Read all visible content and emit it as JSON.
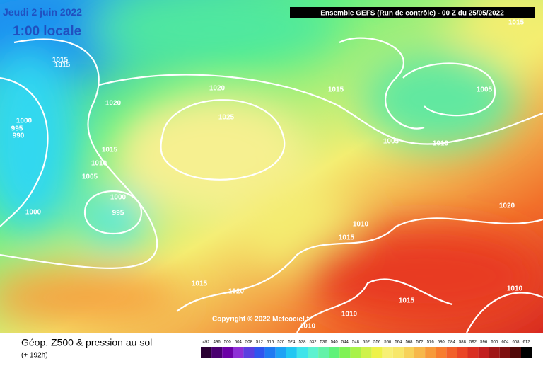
{
  "header": {
    "date": "Jeudi 2 juin 2022",
    "time": "1:00 locale",
    "run": "Ensemble GEFS  (Run de contrôle)  -  00 Z du 25/05/2022"
  },
  "map": {
    "copyright": "Copyright © 2022 Meteociel.fr",
    "isobar_labels": [
      1015,
      1015,
      1020,
      1020,
      1025,
      1015,
      1005,
      1005,
      1010,
      1000,
      995,
      990,
      1015,
      1010,
      1005,
      1000,
      995,
      1000,
      1020,
      1010,
      1015,
      1015,
      1020,
      1015,
      1010,
      1010,
      1010,
      1015
    ]
  },
  "footer": {
    "title": "Géop. Z500 & pression au sol",
    "lead": "(+ 192h)"
  },
  "legend": {
    "values": [
      492,
      496,
      500,
      504,
      508,
      512,
      516,
      520,
      524,
      528,
      532,
      536,
      540,
      544,
      548,
      552,
      556,
      560,
      564,
      568,
      572,
      576,
      580,
      584,
      588,
      592,
      596,
      600,
      604,
      608,
      612
    ],
    "colors": [
      "#2a0033",
      "#4a0070",
      "#6b00a6",
      "#8e2fd6",
      "#5a3fe0",
      "#2f55ee",
      "#1f7af2",
      "#1ea2f5",
      "#22c7f2",
      "#3fe4ea",
      "#5cf2d0",
      "#63f2a8",
      "#5ff27a",
      "#7ff255",
      "#a8f24a",
      "#cff24a",
      "#eef24a",
      "#f7f075",
      "#f7e76a",
      "#f7d25a",
      "#f7b84a",
      "#f79a3a",
      "#f77d2f",
      "#f2602a",
      "#ea4526",
      "#d92f22",
      "#c21e1e",
      "#a01616",
      "#7e0f0f",
      "#500808",
      "#000000"
    ]
  }
}
